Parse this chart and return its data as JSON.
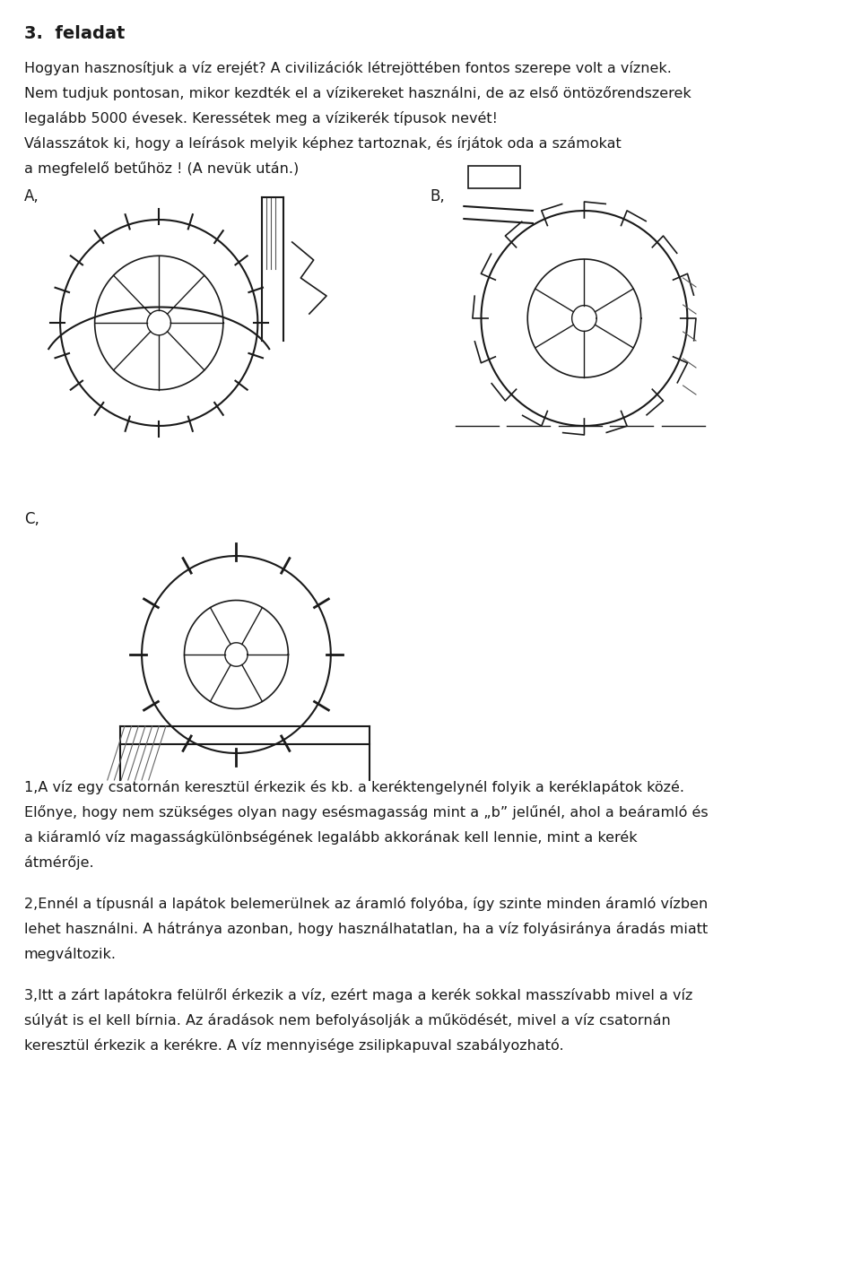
{
  "title": "3.  feladat",
  "para1": "Hogyan hasznosítjuk a víz erejét? A civilizációk létrejöttében fontos szerepe volt a víznek.",
  "para2": "Nem tudjuk pontosan, mikor kezdték el a vízikereket használni, de az első öntözőrendszerek",
  "para2b": "legalább 5000 évesek. Keressétek meg a vízikerék típusok nevét!",
  "para3": "Válasszátok ki, hogy a leírások melyik képhez tartoznak, és írjátok oda a számokat",
  "para3b": "a megfelelő betűhöz ! (A nevük után.)",
  "label_A": "A,",
  "label_B": "B,",
  "label_C": "C,",
  "desc1_title": "1,",
  "desc1": "A víz egy csatornán keresztül érkezik és kb. a keréktengelynél folyik a keréklapátok közé.",
  "desc1b": "Előnye, hogy nem szükséges olyan nagy esésmagasság mint a „b” jelűnél, ahol a beáramló és",
  "desc1c": "a kiáramló víz magasságkülönbségének legalább akkorának kell lennie, mint a kerék",
  "desc1d": "átmérője.",
  "desc2_title": "2,",
  "desc2": "Ennél a típusnál a lapátok belemerülnek az áramló folyóba, így szinte minden áramló vízben",
  "desc2b": "lehet használni. A hátránya azonban, hogy használhatatlan, ha a víz folyásiránya áradás miatt",
  "desc2c": "megváltozik.",
  "desc3_title": "3,",
  "desc3": "Itt a zárt lapátokra felülről érkezik a víz, ezért maga a kerék sokkal masszívabb mivel a víz",
  "desc3b": "súlyát is el kell bírnia. Az áradások nem befolyásolják a működését, mivel a víz csatornán",
  "desc3c": "keresztül érkezik a kerékre. A víz mennyisége zsilipkapuval szabályozható.",
  "bg_color": "#ffffff",
  "text_color": "#1a1a1a",
  "font_size_title": 14,
  "font_size_body": 11.5,
  "font_size_label": 12
}
